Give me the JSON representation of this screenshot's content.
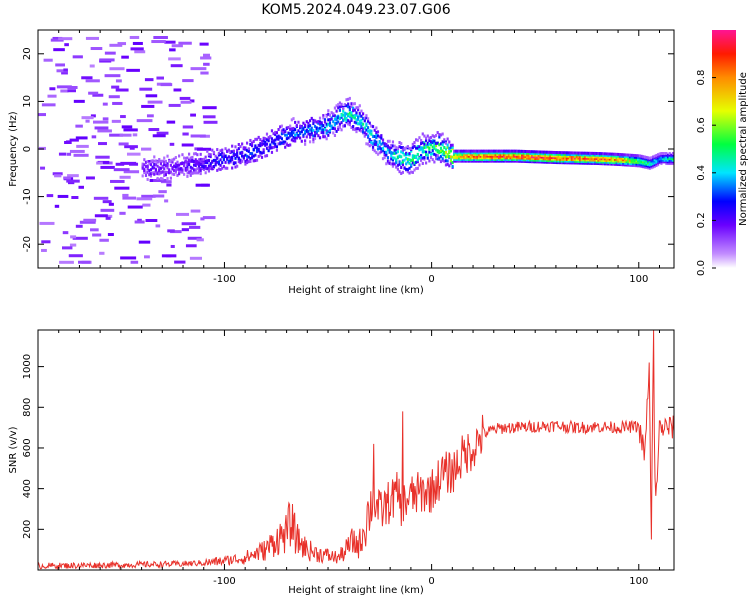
{
  "title": "KOM5.2024.049.23.07.G06",
  "colorbar": {
    "label": "Normalized spectral amplitude",
    "ticks": [
      "0.0",
      "0.2",
      "0.4",
      "0.6",
      "0.8"
    ],
    "tick_values": [
      0.0,
      0.2,
      0.4,
      0.6,
      0.8
    ],
    "range": [
      0,
      1
    ]
  },
  "chart_data": [
    {
      "type": "heatmap",
      "title": "KOM5.2024.049.23.07.G06",
      "xlabel": "Height of straight line (km)",
      "ylabel": "Frequency (Hz)",
      "xlim": [
        -190,
        117
      ],
      "ylim": [
        -25,
        25
      ],
      "xticks": [
        -100,
        0,
        100
      ],
      "xtick_labels": [
        "-100",
        "0",
        "100"
      ],
      "yticks": [
        -20,
        -10,
        0,
        10,
        20
      ],
      "ytick_labels": [
        "-20",
        "-10",
        "0",
        "10",
        "20"
      ],
      "colormap": "rainbow",
      "ridge": {
        "description": "dominant spectral ridge (peak frequency vs height)",
        "x": [
          -130,
          -120,
          -110,
          -100,
          -90,
          -80,
          -70,
          -60,
          -50,
          -45,
          -40,
          -35,
          -30,
          -25,
          -20,
          -15,
          -10,
          -5,
          0,
          5,
          10,
          20,
          40,
          60,
          80,
          90,
          100,
          105,
          110,
          117
        ],
        "y": [
          -4,
          -3.5,
          -3,
          -2,
          -1,
          1,
          3,
          4,
          5,
          6.5,
          7.5,
          6,
          3,
          1,
          -1,
          -2,
          -2,
          0,
          0.5,
          0,
          -1.5,
          -1.5,
          -1.5,
          -1.8,
          -2,
          -2.2,
          -2.5,
          -3,
          -2,
          -2
        ],
        "amplitude": [
          0.2,
          0.2,
          0.25,
          0.3,
          0.3,
          0.3,
          0.35,
          0.35,
          0.4,
          0.45,
          0.5,
          0.45,
          0.45,
          0.4,
          0.45,
          0.5,
          0.55,
          0.5,
          0.55,
          0.6,
          0.8,
          0.9,
          0.95,
          0.95,
          0.9,
          0.85,
          0.6,
          0.5,
          0.4,
          0.5
        ]
      },
      "noise_region_x": [
        -190,
        -110
      ]
    },
    {
      "type": "line",
      "xlabel": "Height of straight line (km)",
      "ylabel": "SNR (v/v)",
      "xlim": [
        -190,
        117
      ],
      "ylim": [
        0,
        1180
      ],
      "xticks": [
        -100,
        0,
        100
      ],
      "xtick_labels": [
        "-100",
        "0",
        "100"
      ],
      "yticks": [
        200,
        400,
        600,
        800,
        1000
      ],
      "ytick_labels": [
        "200",
        "400",
        "600",
        "800",
        "1000"
      ],
      "color": "#e8312a",
      "series": [
        {
          "x": [
            -190,
            -150,
            -120,
            -110,
            -100,
            -90,
            -80,
            -75,
            -70,
            -68,
            -65,
            -60,
            -55,
            -50,
            -45,
            -42,
            -38,
            -35,
            -30,
            -28,
            -25,
            -20,
            -16,
            -15,
            -10,
            -5,
            0,
            5,
            10,
            15,
            20,
            25,
            30,
            35,
            40,
            50,
            60,
            70,
            80,
            90,
            100,
            103,
            105,
            106,
            107,
            108,
            110,
            115,
            117
          ],
          "y": [
            20,
            25,
            30,
            35,
            45,
            60,
            100,
            150,
            180,
            240,
            150,
            100,
            80,
            70,
            60,
            90,
            140,
            120,
            300,
            350,
            280,
            340,
            380,
            320,
            360,
            380,
            390,
            470,
            480,
            560,
            600,
            670,
            690,
            700,
            700,
            705,
            710,
            700,
            705,
            700,
            705,
            560,
            1020,
            140,
            1060,
            300,
            700,
            700,
            700
          ]
        }
      ],
      "spikes": [
        {
          "x": -28,
          "y": 620
        },
        {
          "x": -14,
          "y": 780
        },
        {
          "x": 105,
          "y": 1020
        },
        {
          "x": 106,
          "y": 150
        },
        {
          "x": 107,
          "y": 1180
        }
      ]
    }
  ]
}
